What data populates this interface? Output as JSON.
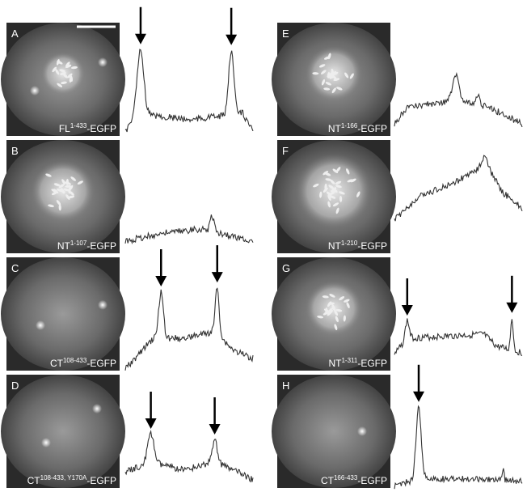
{
  "scale_bar": true,
  "panels": [
    {
      "letter": "A",
      "name": "FL",
      "sup": "1-433",
      "suffix": "-EGFP"
    },
    {
      "letter": "B",
      "name": "NT",
      "sup": "1-107",
      "suffix": "-EGFP"
    },
    {
      "letter": "C",
      "name": "CT",
      "sup": "108-433",
      "suffix": "-EGFP"
    },
    {
      "letter": "D",
      "name": "CT",
      "sup": "108-433, Y170A",
      "suffix": "-EGFP"
    },
    {
      "letter": "E",
      "name": "NT",
      "sup": "1-166",
      "suffix": "-EGFP"
    },
    {
      "letter": "F",
      "name": "NT",
      "sup": "1-210",
      "suffix": "-EGFP"
    },
    {
      "letter": "G",
      "name": "NT",
      "sup": "1-311",
      "suffix": "-EGFP"
    },
    {
      "letter": "H",
      "name": "CT",
      "sup": "166-433",
      "suffix": "-EGFP"
    }
  ]
}
